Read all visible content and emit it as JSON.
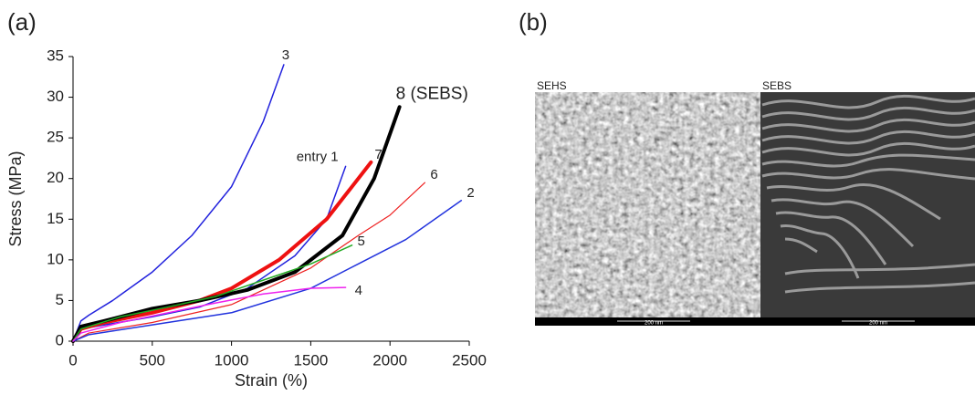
{
  "chart_data": {
    "type": "line",
    "label": "(a)",
    "xlabel": "Strain (%)",
    "ylabel": "Stress (MPa)",
    "xlim": [
      0,
      2500
    ],
    "xticks": [
      0,
      500,
      1000,
      1500,
      2000,
      2500
    ],
    "ylim": [
      0,
      35
    ],
    "yticks": [
      0,
      5,
      10,
      15,
      20,
      25,
      30,
      35
    ],
    "series": [
      {
        "name": "3",
        "color": "#2222dd",
        "width": 1.5,
        "x": [
          0,
          50,
          100,
          250,
          500,
          750,
          1000,
          1200,
          1330
        ],
        "y": [
          0,
          2.5,
          3.2,
          5,
          8.5,
          13,
          19,
          27,
          34
        ]
      },
      {
        "name": "entry 1",
        "color": "#2222dd",
        "width": 1.5,
        "x": [
          0,
          50,
          200,
          500,
          800,
          1100,
          1400,
          1600,
          1720
        ],
        "y": [
          0,
          1.5,
          2,
          3,
          4.2,
          6.5,
          10.5,
          15,
          21.5
        ]
      },
      {
        "name": "7",
        "color": "#ee1111",
        "width": 4,
        "x": [
          0,
          50,
          200,
          500,
          800,
          1000,
          1300,
          1600,
          1880
        ],
        "y": [
          0,
          1.5,
          2.3,
          3.5,
          5,
          6.5,
          10,
          15,
          22
        ]
      },
      {
        "name": "8 (SEBS)",
        "color": "#000000",
        "width": 4,
        "x": [
          0,
          50,
          200,
          500,
          800,
          1100,
          1400,
          1700,
          1900,
          2060
        ],
        "y": [
          0,
          1.8,
          2.5,
          4,
          5,
          6.3,
          8.5,
          13,
          20,
          28.8
        ]
      },
      {
        "name": "6",
        "color": "#ee2222",
        "width": 1.2,
        "x": [
          0,
          100,
          500,
          1000,
          1500,
          1800,
          2000,
          2220
        ],
        "y": [
          0,
          1,
          2.3,
          4.5,
          9,
          13,
          15.5,
          19.5
        ]
      },
      {
        "name": "2",
        "color": "#2233dd",
        "width": 1.5,
        "x": [
          0,
          100,
          500,
          1000,
          1500,
          1800,
          2100,
          2450
        ],
        "y": [
          0,
          0.8,
          2,
          3.5,
          6.5,
          9.5,
          12.5,
          17.3
        ]
      },
      {
        "name": "5",
        "color": "#22aa22",
        "width": 1.5,
        "x": [
          0,
          50,
          300,
          600,
          900,
          1200,
          1500,
          1760
        ],
        "y": [
          0,
          1.5,
          3,
          4.2,
          5.5,
          7.5,
          9.5,
          11.8
        ]
      },
      {
        "name": "4",
        "color": "#ee22ee",
        "width": 1.5,
        "x": [
          0,
          50,
          300,
          600,
          900,
          1200,
          1500,
          1720
        ],
        "y": [
          0,
          1,
          2.3,
          3.5,
          4.7,
          5.8,
          6.5,
          6.6
        ]
      }
    ]
  },
  "panel_b": {
    "label": "(b)",
    "images": [
      {
        "label": "SEHS",
        "scale": "200 nm"
      },
      {
        "label": "SEBS",
        "scale": "200 nm"
      }
    ]
  }
}
